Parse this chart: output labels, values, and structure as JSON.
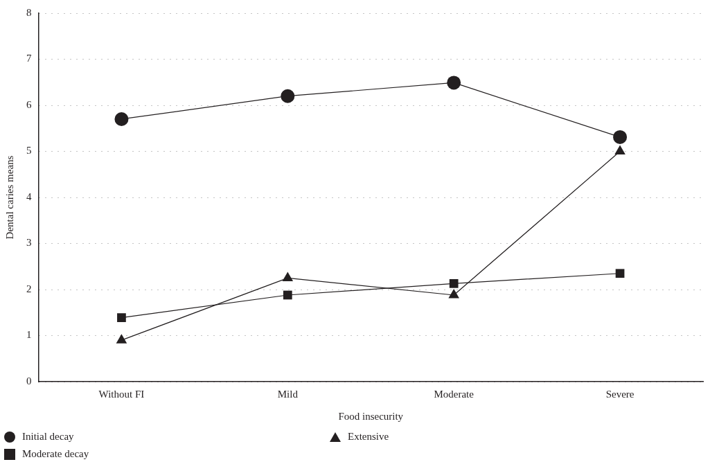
{
  "chart_data": {
    "type": "line",
    "xlabel": "Food insecurity",
    "ylabel": "Dental caries means",
    "categories": [
      "Without FI",
      "Mild",
      "Moderate",
      "Severe"
    ],
    "ylim": [
      0,
      8
    ],
    "yticks": [
      0,
      1,
      2,
      3,
      4,
      5,
      6,
      7,
      8
    ],
    "grid": "y",
    "legend": "bottom left",
    "line_style": "solid",
    "series": [
      {
        "name": "Initial decay",
        "color": "#231f20",
        "marker": "circle",
        "values": [
          5.7,
          6.2,
          6.49,
          5.31
        ]
      },
      {
        "name": "Moderate decay",
        "color": "#231f20",
        "marker": "square",
        "values": [
          1.39,
          1.88,
          2.13,
          2.35
        ]
      },
      {
        "name": "Extensive",
        "color": "#231f20",
        "marker": "triangle",
        "values": [
          0.9,
          2.25,
          1.88,
          5.0
        ]
      }
    ]
  }
}
